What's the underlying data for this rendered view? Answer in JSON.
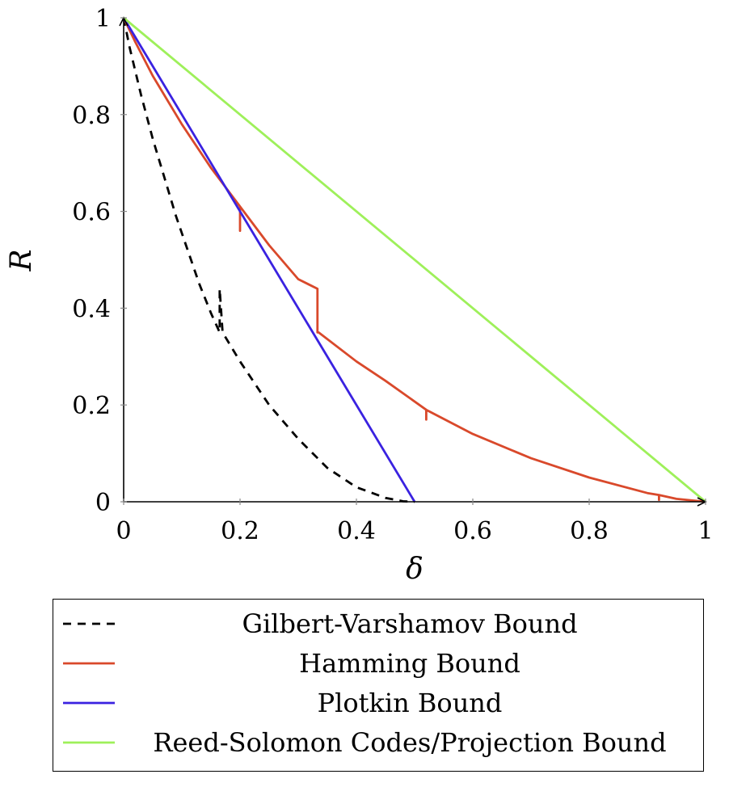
{
  "chart_data": {
    "type": "line",
    "title": "",
    "xlabel": "δ",
    "ylabel": "R",
    "xlim": [
      0,
      1
    ],
    "ylim": [
      0,
      1
    ],
    "xticks": [
      0,
      0.2,
      0.4,
      0.6,
      0.8,
      1
    ],
    "xtick_labels": [
      "0",
      "0.2",
      "0.4",
      "0.6",
      "0.8",
      "1"
    ],
    "yticks": [
      0,
      0.2,
      0.4,
      0.6,
      0.8,
      1
    ],
    "ytick_labels": [
      "0",
      "0.2",
      "0.4",
      "0.6",
      "0.8",
      "1"
    ],
    "grid": false,
    "legend_position": "bottom",
    "series": [
      {
        "name": "Gilbert-Varshamov Bound",
        "color": "#000000",
        "dash": "dashed",
        "x": [
          0,
          0.005,
          0.01,
          0.02,
          0.03,
          0.05,
          0.07,
          0.09,
          0.11,
          0.13,
          0.15,
          0.165,
          0.165,
          0.17,
          0.2,
          0.25,
          0.3,
          0.35,
          0.4,
          0.45,
          0.48,
          0.5
        ],
        "y": [
          1,
          0.97,
          0.94,
          0.89,
          0.84,
          0.75,
          0.67,
          0.59,
          0.52,
          0.45,
          0.39,
          0.35,
          0.44,
          0.35,
          0.29,
          0.2,
          0.13,
          0.07,
          0.03,
          0.008,
          0.001,
          0
        ]
      },
      {
        "name": "Hamming Bound",
        "color": "#d9492b",
        "dash": "solid",
        "x": [
          0,
          0.02,
          0.05,
          0.1,
          0.15,
          0.2,
          0.2,
          0.2,
          0.25,
          0.3,
          0.333,
          0.333,
          0.335,
          0.4,
          0.45,
          0.52,
          0.52,
          0.52,
          0.6,
          0.7,
          0.8,
          0.9,
          0.92,
          0.92,
          0.92,
          0.95,
          1
        ],
        "y": [
          1,
          0.95,
          0.88,
          0.78,
          0.69,
          0.61,
          0.56,
          0.61,
          0.53,
          0.46,
          0.44,
          0.35,
          0.35,
          0.29,
          0.25,
          0.19,
          0.17,
          0.19,
          0.14,
          0.09,
          0.05,
          0.018,
          0.014,
          0.004,
          0.014,
          0.006,
          0
        ]
      },
      {
        "name": "Plotkin Bound",
        "color": "#3a22e0",
        "dash": "solid",
        "x": [
          0,
          0.5
        ],
        "y": [
          1,
          0
        ]
      },
      {
        "name": "Reed-Solomon Codes/Projection Bound",
        "color": "#9ef05a",
        "dash": "solid",
        "x": [
          0,
          1
        ],
        "y": [
          1,
          0
        ]
      }
    ]
  }
}
